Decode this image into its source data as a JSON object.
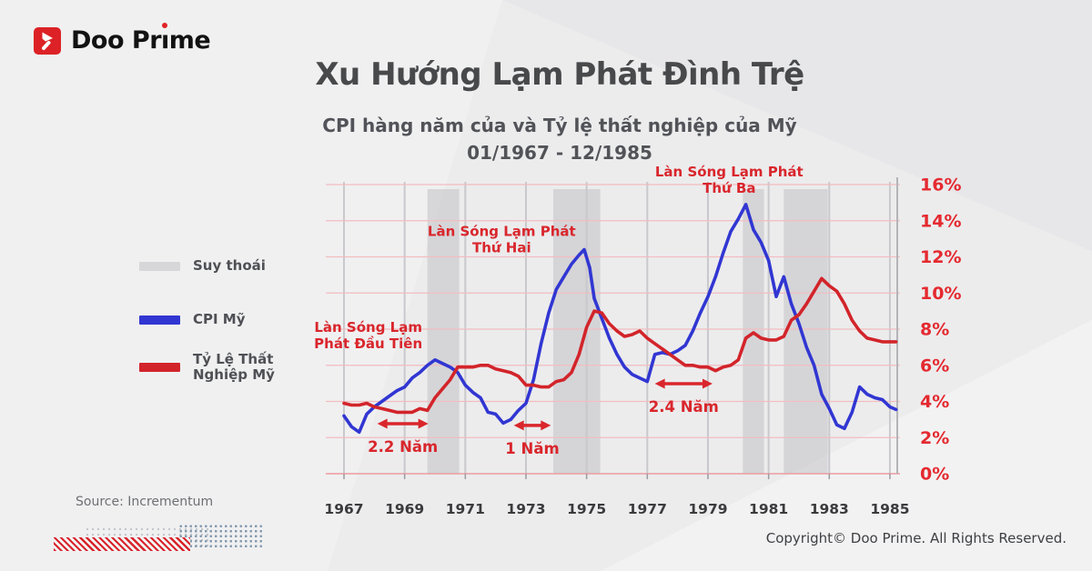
{
  "logo": {
    "part1": "Doo Pr",
    "part2": "ı",
    "part3": "me"
  },
  "header": {
    "title": "Xu Hướng Lạm Phát Đình Trệ",
    "subtitle_line1": "CPI hàng năm của và Tỷ lệ thất nghiệp của Mỹ",
    "subtitle_line2": "01/1967 - 12/1985"
  },
  "legend": {
    "items": [
      {
        "label": "Suy thoái",
        "color": "#d7d7d9",
        "type": "band"
      },
      {
        "label": "CPI Mỹ",
        "color": "#3136d2",
        "type": "line"
      },
      {
        "label_line1": "Tỷ Lệ Thất",
        "label_line2": "Nghiệp Mỹ",
        "color": "#d2242a",
        "type": "line"
      }
    ]
  },
  "footer": {
    "source": "Source: Incrementum",
    "copyright": "Copyright© Doo Prime. All Rights Reserved."
  },
  "chart_data": {
    "type": "line",
    "title": "Xu Hướng Lạm Phát Đình Trệ",
    "subtitle": "CPI hàng năm của và Tỷ lệ thất nghiệp của Mỹ",
    "period": "01/1967 - 12/1985",
    "xlabel": "",
    "ylabel": "",
    "xlim": [
      1966.4,
      1985.25
    ],
    "ylim": [
      0,
      16
    ],
    "x_ticks": [
      1967,
      1969,
      1971,
      1973,
      1975,
      1977,
      1979,
      1981,
      1983,
      1985
    ],
    "y_tick_values": [
      0,
      2,
      4,
      6,
      8,
      10,
      12,
      14,
      16
    ],
    "y_tick_labels": [
      "0%",
      "2%",
      "4%",
      "6%",
      "8%",
      "10%",
      "12%",
      "14%",
      "16%"
    ],
    "colors": {
      "cpi": "#3136d2",
      "unemployment": "#d2242a",
      "recession_band": "#c2c2c7",
      "pink_grid": "#f2bdc0",
      "axis_line_pink": "#ec9ba0",
      "vert_grid": "#c9c9cd",
      "right_axis": "#b4b4b8",
      "y_label_red": "#e42a30",
      "x_label_dark": "#3b3b3d",
      "annotation_red": "#d9262c"
    },
    "recessions": [
      [
        1969.75,
        1970.8
      ],
      [
        1973.9,
        1975.45
      ],
      [
        1980.15,
        1980.85
      ],
      [
        1981.5,
        1982.95
      ]
    ],
    "series": [
      {
        "name": "CPI Mỹ",
        "color": "#3136d2",
        "points": [
          [
            1967,
            3.2
          ],
          [
            1967.25,
            2.6
          ],
          [
            1967.5,
            2.3
          ],
          [
            1967.75,
            3.3
          ],
          [
            1968,
            3.7
          ],
          [
            1968.25,
            4.0
          ],
          [
            1968.5,
            4.3
          ],
          [
            1968.75,
            4.6
          ],
          [
            1969,
            4.8
          ],
          [
            1969.25,
            5.3
          ],
          [
            1969.5,
            5.6
          ],
          [
            1969.75,
            6.0
          ],
          [
            1970,
            6.3
          ],
          [
            1970.25,
            6.1
          ],
          [
            1970.5,
            5.9
          ],
          [
            1970.75,
            5.6
          ],
          [
            1971,
            4.9
          ],
          [
            1971.25,
            4.5
          ],
          [
            1971.5,
            4.2
          ],
          [
            1971.75,
            3.4
          ],
          [
            1972,
            3.3
          ],
          [
            1972.25,
            2.8
          ],
          [
            1972.5,
            3.0
          ],
          [
            1972.75,
            3.5
          ],
          [
            1973,
            3.9
          ],
          [
            1973.25,
            5.2
          ],
          [
            1973.5,
            7.2
          ],
          [
            1973.75,
            8.9
          ],
          [
            1974,
            10.2
          ],
          [
            1974.25,
            10.9
          ],
          [
            1974.5,
            11.6
          ],
          [
            1974.75,
            12.1
          ],
          [
            1974.92,
            12.4
          ],
          [
            1975.1,
            11.4
          ],
          [
            1975.25,
            9.7
          ],
          [
            1975.5,
            8.6
          ],
          [
            1975.75,
            7.5
          ],
          [
            1976,
            6.6
          ],
          [
            1976.25,
            5.9
          ],
          [
            1976.5,
            5.5
          ],
          [
            1976.75,
            5.3
          ],
          [
            1977,
            5.1
          ],
          [
            1977.25,
            6.6
          ],
          [
            1977.5,
            6.7
          ],
          [
            1977.75,
            6.6
          ],
          [
            1978,
            6.8
          ],
          [
            1978.25,
            7.1
          ],
          [
            1978.5,
            7.9
          ],
          [
            1978.75,
            8.9
          ],
          [
            1979,
            9.8
          ],
          [
            1979.25,
            10.9
          ],
          [
            1979.5,
            12.2
          ],
          [
            1979.75,
            13.4
          ],
          [
            1980,
            14.1
          ],
          [
            1980.25,
            14.9
          ],
          [
            1980.5,
            13.5
          ],
          [
            1980.75,
            12.8
          ],
          [
            1981,
            11.8
          ],
          [
            1981.25,
            9.8
          ],
          [
            1981.5,
            10.9
          ],
          [
            1981.75,
            9.4
          ],
          [
            1982,
            8.3
          ],
          [
            1982.25,
            7.0
          ],
          [
            1982.5,
            6.0
          ],
          [
            1982.75,
            4.4
          ],
          [
            1983,
            3.6
          ],
          [
            1983.25,
            2.7
          ],
          [
            1983.5,
            2.5
          ],
          [
            1983.75,
            3.4
          ],
          [
            1984,
            4.8
          ],
          [
            1984.25,
            4.4
          ],
          [
            1984.5,
            4.2
          ],
          [
            1984.75,
            4.1
          ],
          [
            1985,
            3.7
          ],
          [
            1985.2,
            3.55
          ]
        ]
      },
      {
        "name": "Tỷ Lệ Thất Nghiệp Mỹ",
        "color": "#d2242a",
        "points": [
          [
            1967,
            3.9
          ],
          [
            1967.25,
            3.8
          ],
          [
            1967.5,
            3.8
          ],
          [
            1967.75,
            3.9
          ],
          [
            1968,
            3.7
          ],
          [
            1968.25,
            3.6
          ],
          [
            1968.5,
            3.5
          ],
          [
            1968.75,
            3.4
          ],
          [
            1969,
            3.4
          ],
          [
            1969.25,
            3.4
          ],
          [
            1969.5,
            3.6
          ],
          [
            1969.75,
            3.5
          ],
          [
            1970,
            4.2
          ],
          [
            1970.25,
            4.7
          ],
          [
            1970.5,
            5.2
          ],
          [
            1970.75,
            5.9
          ],
          [
            1971,
            5.9
          ],
          [
            1971.25,
            5.9
          ],
          [
            1971.5,
            6.0
          ],
          [
            1971.75,
            6.0
          ],
          [
            1972,
            5.8
          ],
          [
            1972.25,
            5.7
          ],
          [
            1972.5,
            5.6
          ],
          [
            1972.75,
            5.4
          ],
          [
            1973,
            4.9
          ],
          [
            1973.25,
            4.9
          ],
          [
            1973.5,
            4.8
          ],
          [
            1973.75,
            4.8
          ],
          [
            1974,
            5.1
          ],
          [
            1974.25,
            5.2
          ],
          [
            1974.5,
            5.6
          ],
          [
            1974.75,
            6.6
          ],
          [
            1975,
            8.1
          ],
          [
            1975.25,
            9.0
          ],
          [
            1975.5,
            8.9
          ],
          [
            1975.75,
            8.3
          ],
          [
            1976,
            7.9
          ],
          [
            1976.25,
            7.6
          ],
          [
            1976.5,
            7.7
          ],
          [
            1976.75,
            7.9
          ],
          [
            1977,
            7.5
          ],
          [
            1977.25,
            7.2
          ],
          [
            1977.5,
            6.9
          ],
          [
            1977.75,
            6.6
          ],
          [
            1978,
            6.3
          ],
          [
            1978.25,
            6.0
          ],
          [
            1978.5,
            6.0
          ],
          [
            1978.75,
            5.9
          ],
          [
            1979,
            5.9
          ],
          [
            1979.25,
            5.7
          ],
          [
            1979.5,
            5.9
          ],
          [
            1979.75,
            6.0
          ],
          [
            1980,
            6.3
          ],
          [
            1980.25,
            7.5
          ],
          [
            1980.5,
            7.8
          ],
          [
            1980.75,
            7.5
          ],
          [
            1981,
            7.4
          ],
          [
            1981.25,
            7.4
          ],
          [
            1981.5,
            7.6
          ],
          [
            1981.75,
            8.5
          ],
          [
            1982,
            8.8
          ],
          [
            1982.25,
            9.4
          ],
          [
            1982.5,
            10.1
          ],
          [
            1982.75,
            10.8
          ],
          [
            1983,
            10.4
          ],
          [
            1983.25,
            10.1
          ],
          [
            1983.5,
            9.4
          ],
          [
            1983.75,
            8.5
          ],
          [
            1984,
            7.9
          ],
          [
            1984.25,
            7.5
          ],
          [
            1984.5,
            7.4
          ],
          [
            1984.75,
            7.3
          ],
          [
            1985,
            7.3
          ],
          [
            1985.2,
            7.3
          ]
        ]
      }
    ],
    "annotations": [
      {
        "id": "wave-1",
        "lines": [
          "Làn Sóng Lạm",
          "Phát Đầu Tiên"
        ],
        "x": 1967.8,
        "y": 7.6
      },
      {
        "id": "wave-2",
        "lines": [
          "Làn Sóng Lạm Phát",
          "Thứ Hai"
        ],
        "x": 1972.2,
        "y": 12.9
      },
      {
        "id": "wave-3",
        "lines": [
          "Làn Sóng Lạm Phát",
          "Thứ Ba"
        ],
        "x": 1979.7,
        "y": 16.2
      }
    ],
    "arrows": [
      {
        "label": "2.2 Năm",
        "x1": 1968.1,
        "x2": 1969.78,
        "y": 2.77
      },
      {
        "label": "1 Năm",
        "x1": 1972.6,
        "x2": 1973.82,
        "y": 2.67
      },
      {
        "label": "2.4 Năm",
        "x1": 1977.25,
        "x2": 1979.15,
        "y": 4.98
      }
    ]
  }
}
